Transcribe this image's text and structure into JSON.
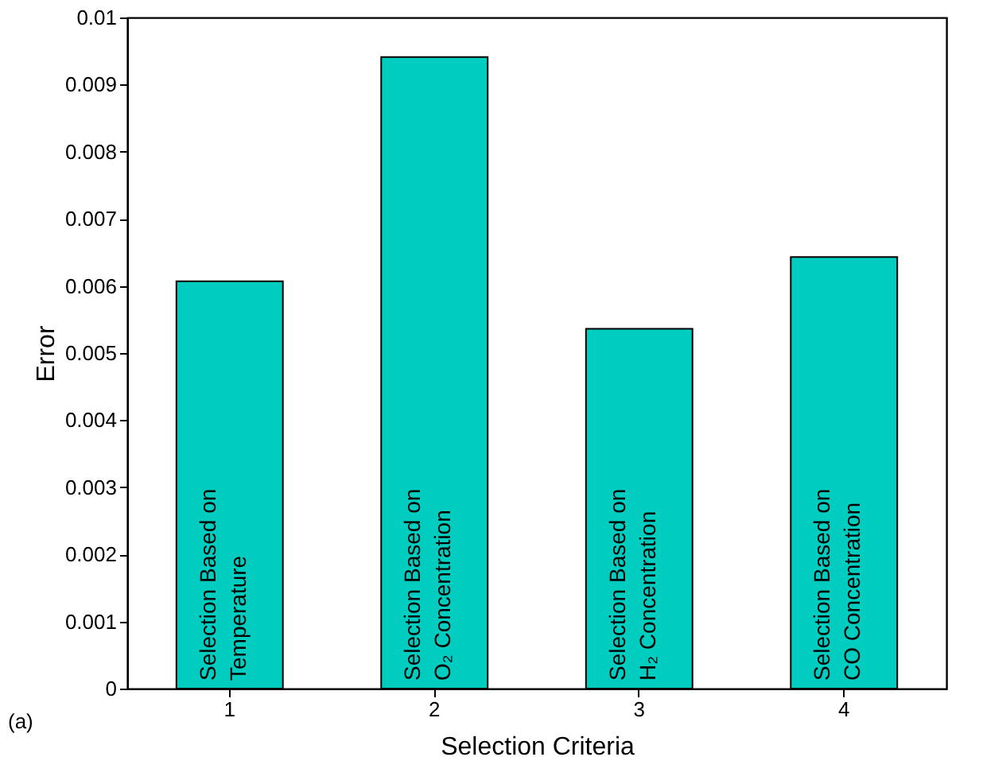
{
  "chart_data": {
    "type": "bar",
    "xlabel": "Selection Criteria",
    "ylabel": "Error",
    "categories": [
      "1",
      "2",
      "3",
      "4"
    ],
    "values": [
      0.00607,
      0.00941,
      0.00536,
      0.00643
    ],
    "color": "#00cdc0",
    "ylim": [
      0,
      0.01
    ],
    "yticks": [
      0,
      0.001,
      0.002,
      0.003,
      0.004,
      0.005,
      0.006,
      0.007,
      0.008,
      0.009,
      0.01
    ],
    "grid": false,
    "annotations": [
      "Selection Based on\nTemperature",
      "Selection Based on\nO₂ Concentration",
      "Selection Based on\nH₂ Concentration",
      "Selection Based on\nCO Concentration",
      "(a)"
    ]
  }
}
